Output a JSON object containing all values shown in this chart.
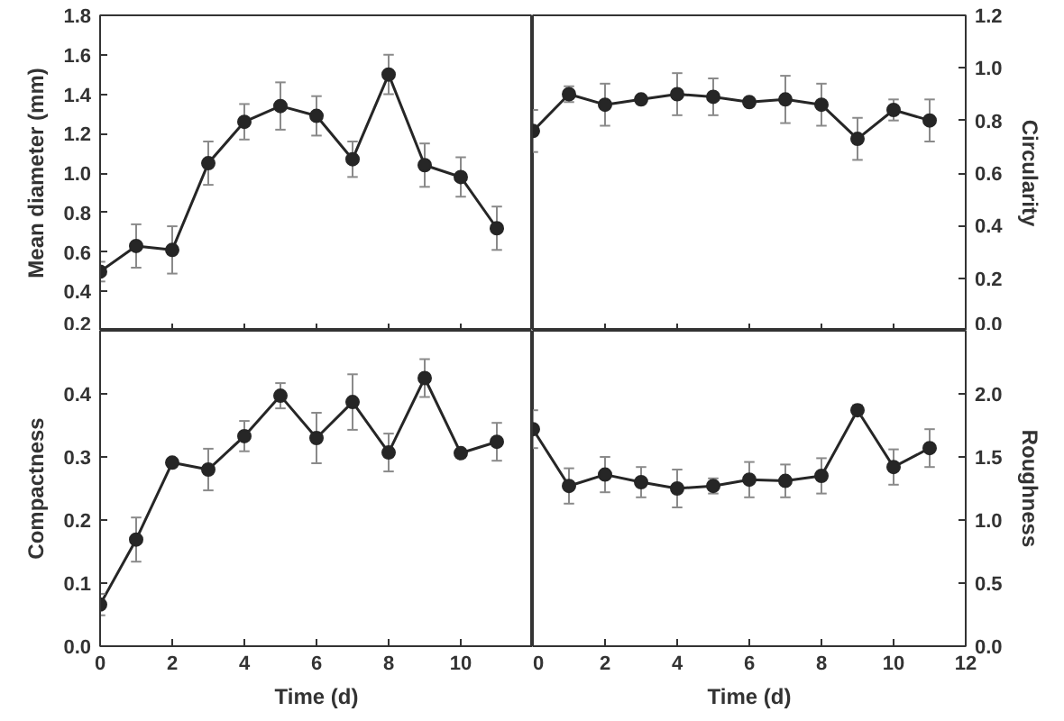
{
  "chart_data": [
    {
      "type": "line",
      "marker": "circle",
      "line_style": "solid",
      "x": [
        0,
        1,
        2,
        3,
        4,
        5,
        6,
        7,
        8,
        9,
        10,
        11
      ],
      "xlim": [
        0,
        12
      ],
      "xticks": [
        0,
        2,
        4,
        6,
        8,
        10
      ],
      "ylabel": "Mean diameter (mm)",
      "ylim": [
        0.2,
        1.8
      ],
      "yticks": [
        0.2,
        0.4,
        0.6,
        0.8,
        {
          "value": 1,
          "label": "1.0"
        },
        1.2,
        1.4,
        1.6,
        1.8
      ],
      "tick_labels": "y",
      "series": [
        {
          "color": "#262626",
          "values": [
            0.5,
            0.63,
            0.61,
            1.05,
            1.26,
            1.34,
            1.29,
            1.07,
            1.5,
            1.04,
            0.98,
            0.72
          ],
          "errors": [
            0.05,
            0.11,
            0.12,
            0.11,
            0.09,
            0.12,
            0.1,
            0.09,
            0.1,
            0.11,
            0.1,
            0.11
          ]
        }
      ]
    },
    {
      "type": "line",
      "marker": "circle",
      "line_style": "solid",
      "x": [
        0,
        1,
        2,
        3,
        4,
        5,
        6,
        7,
        8,
        9,
        10,
        11
      ],
      "xlim": [
        0,
        12
      ],
      "xticks": [
        0,
        2,
        4,
        6,
        8,
        10,
        12
      ],
      "ylabel": "Circularity",
      "ylim": [
        0,
        1.2
      ],
      "yticks": [
        {
          "value": 0,
          "label": "0.0"
        },
        0.2,
        0.4,
        0.6,
        0.8,
        {
          "value": 1,
          "label": "1.0"
        },
        1.2
      ],
      "tick_labels": "y",
      "series": [
        {
          "color": "#262626",
          "values": [
            0.76,
            0.9,
            0.86,
            0.88,
            0.9,
            0.89,
            0.87,
            0.88,
            0.86,
            0.73,
            0.84,
            0.8
          ],
          "errors": [
            0.08,
            0.03,
            0.08,
            0.01,
            0.08,
            0.07,
            0.01,
            0.09,
            0.08,
            0.08,
            0.04,
            0.08
          ]
        }
      ]
    },
    {
      "type": "line",
      "marker": "circle",
      "line_style": "solid",
      "x": [
        0,
        1,
        2,
        3,
        4,
        5,
        6,
        7,
        8,
        9,
        10,
        11
      ],
      "xlim": [
        0,
        12
      ],
      "xticks": [
        0,
        2,
        4,
        6,
        8,
        10
      ],
      "xlabel": "Time (d)",
      "ylabel": "Compactness",
      "ylim": [
        0,
        0.5
      ],
      "yticks": [
        {
          "value": 0,
          "label": "0.0"
        },
        0.1,
        0.2,
        0.3,
        0.4,
        {
          "value": 0.5,
          "label": null
        }
      ],
      "series": [
        {
          "color": "#262626",
          "values": [
            0.066,
            0.169,
            0.291,
            0.28,
            0.333,
            0.397,
            0.33,
            0.387,
            0.307,
            0.425,
            0.306,
            0.324
          ],
          "errors": [
            0.017,
            0.035,
            0.005,
            0.033,
            0.024,
            0.02,
            0.04,
            0.044,
            0.03,
            0.03,
            0.005,
            0.03
          ]
        }
      ]
    },
    {
      "type": "line",
      "marker": "circle",
      "line_style": "solid",
      "x": [
        0,
        1,
        2,
        3,
        4,
        5,
        6,
        7,
        8,
        9,
        10,
        11
      ],
      "xlim": [
        0,
        12
      ],
      "xticks": [
        0,
        2,
        4,
        6,
        8,
        10,
        12
      ],
      "xlabel": "Time (d)",
      "ylabel": "Roughness",
      "ylim": [
        0,
        2.5
      ],
      "yticks": [
        {
          "value": 0,
          "label": "0.0"
        },
        0.5,
        {
          "value": 1,
          "label": "1.0"
        },
        1.5,
        {
          "value": 2,
          "label": "2.0"
        },
        {
          "value": 2.5,
          "label": null
        }
      ],
      "series": [
        {
          "color": "#262626",
          "values": [
            1.72,
            1.27,
            1.36,
            1.3,
            1.25,
            1.27,
            1.32,
            1.31,
            1.35,
            1.87,
            1.42,
            1.57
          ],
          "errors": [
            0.15,
            0.14,
            0.14,
            0.12,
            0.15,
            0.06,
            0.14,
            0.13,
            0.14,
            0.04,
            0.14,
            0.15
          ]
        }
      ]
    }
  ]
}
